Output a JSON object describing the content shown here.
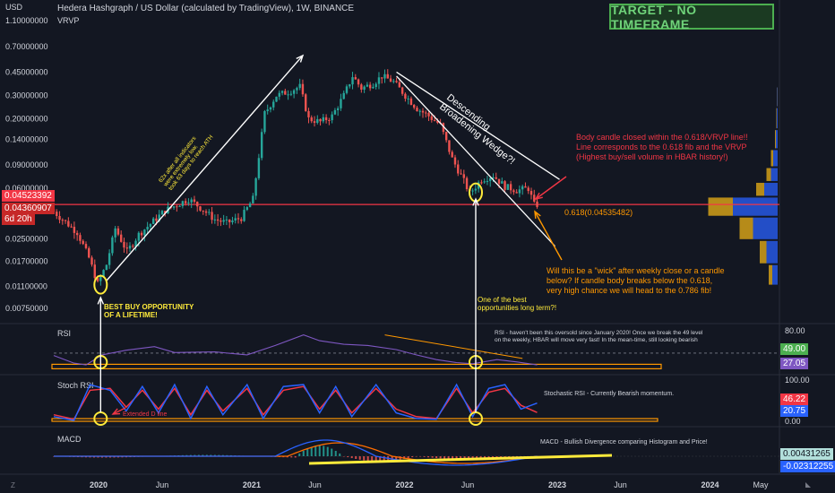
{
  "header": {
    "currency": "USD",
    "title": "Hedera Hashgraph / US Dollar (calculated by TradingView), 1W, BINANCE",
    "indicator": "VRVP",
    "target_label": "TARGET - NO TIMEFRAME"
  },
  "chart_data": {
    "type": "candlestick",
    "symbol": "HBAR/USD",
    "timeframe": "1W",
    "y_scale": "log",
    "price_axis_labels": [
      "1.10000000",
      "0.70000000",
      "0.45000000",
      "0.30000000",
      "0.20000000",
      "0.14000000",
      "0.09000000",
      "0.06000000",
      "0.02500000",
      "0.01700000",
      "0.01100000",
      "0.00750000"
    ],
    "price_axis_values": [
      1.1,
      0.7,
      0.45,
      0.3,
      0.2,
      0.14,
      0.09,
      0.06,
      0.025,
      0.017,
      0.011,
      0.0075
    ],
    "x_axis_labels": [
      "2020",
      "Jun",
      "2021",
      "Jun",
      "2022",
      "Jun",
      "2023",
      "Jun",
      "2024",
      "May"
    ],
    "x_axis_dates": [
      "2020-01-01",
      "2020-06-01",
      "2021-01-01",
      "2021-06-01",
      "2022-01-01",
      "2022-06-01",
      "2023-01-01",
      "2023-06-01",
      "2024-01-01",
      "2024-05-01"
    ],
    "price_path": [
      [
        "2019-09-16",
        0.042
      ],
      [
        "2019-10-14",
        0.035
      ],
      [
        "2019-11-18",
        0.028
      ],
      [
        "2019-12-16",
        0.018
      ],
      [
        "2020-01-06",
        0.0115
      ],
      [
        "2020-01-27",
        0.016
      ],
      [
        "2020-02-17",
        0.03
      ],
      [
        "2020-03-16",
        0.02
      ],
      [
        "2020-04-13",
        0.027
      ],
      [
        "2020-05-18",
        0.034
      ],
      [
        "2020-06-15",
        0.041
      ],
      [
        "2020-07-13",
        0.045
      ],
      [
        "2020-08-10",
        0.05
      ],
      [
        "2020-09-07",
        0.043
      ],
      [
        "2020-10-12",
        0.035
      ],
      [
        "2020-11-09",
        0.033
      ],
      [
        "2020-12-14",
        0.036
      ],
      [
        "2021-01-11",
        0.05
      ],
      [
        "2021-02-08",
        0.22
      ],
      [
        "2021-03-08",
        0.3
      ],
      [
        "2021-04-05",
        0.32
      ],
      [
        "2021-05-03",
        0.35
      ],
      [
        "2021-05-24",
        0.2
      ],
      [
        "2021-06-21",
        0.19
      ],
      [
        "2021-07-19",
        0.21
      ],
      [
        "2021-08-16",
        0.3
      ],
      [
        "2021-09-06",
        0.42
      ],
      [
        "2021-09-27",
        0.34
      ],
      [
        "2021-10-25",
        0.37
      ],
      [
        "2021-11-15",
        0.42
      ],
      [
        "2021-12-13",
        0.38
      ],
      [
        "2022-01-10",
        0.3
      ],
      [
        "2022-02-07",
        0.24
      ],
      [
        "2022-03-07",
        0.21
      ],
      [
        "2022-04-04",
        0.18
      ],
      [
        "2022-05-02",
        0.1
      ],
      [
        "2022-05-30",
        0.068
      ],
      [
        "2022-06-13",
        0.055
      ],
      [
        "2022-07-11",
        0.07
      ],
      [
        "2022-08-08",
        0.075
      ],
      [
        "2022-09-05",
        0.062
      ],
      [
        "2022-10-03",
        0.058
      ],
      [
        "2022-10-31",
        0.06
      ],
      [
        "2022-11-14",
        0.0452
      ]
    ],
    "last_price": "0.04523392",
    "prev_price": "0.04360907",
    "countdown": "6d 20h",
    "fib_label": "0.618(0.04535482)",
    "fib_value": 0.04535482,
    "volume_profile": {
      "name": "VRVP",
      "bins": [
        {
          "price": 0.3,
          "up": 0.01,
          "down": 0.005
        },
        {
          "price": 0.2,
          "up": 0.02,
          "down": 0.01
        },
        {
          "price": 0.14,
          "up": 0.04,
          "down": 0.02
        },
        {
          "price": 0.1,
          "up": 0.1,
          "down": 0.05
        },
        {
          "price": 0.075,
          "up": 0.15,
          "down": 0.1
        },
        {
          "price": 0.06,
          "up": 0.3,
          "down": 0.18
        },
        {
          "price": 0.045,
          "up": 1.0,
          "down": 0.55
        },
        {
          "price": 0.03,
          "up": 0.55,
          "down": 0.3
        },
        {
          "price": 0.02,
          "up": 0.25,
          "down": 0.15
        },
        {
          "price": 0.013,
          "up": 0.12,
          "down": 0.08
        }
      ]
    },
    "rsi": {
      "name": "RSI",
      "axis_labels": [
        "80.00"
      ],
      "current": "49.00",
      "current2": "27.05",
      "path": [
        [
          0,
          45
        ],
        [
          5,
          32
        ],
        [
          8,
          29
        ],
        [
          12,
          46
        ],
        [
          18,
          54
        ],
        [
          25,
          60
        ],
        [
          30,
          50
        ],
        [
          40,
          51
        ],
        [
          48,
          46
        ],
        [
          55,
          62
        ],
        [
          62,
          80
        ],
        [
          66,
          70
        ],
        [
          72,
          64
        ],
        [
          78,
          62
        ],
        [
          85,
          55
        ],
        [
          90,
          46
        ],
        [
          95,
          38
        ],
        [
          100,
          33
        ],
        [
          104,
          31
        ],
        [
          110,
          38
        ],
        [
          115,
          34
        ],
        [
          120,
          29
        ]
      ]
    },
    "stoch_rsi": {
      "name": "Stoch RSI",
      "axis_labels": [
        "100.00",
        "0.00"
      ],
      "k_value": "46.22",
      "d_value": "20.75",
      "k_path": [
        [
          0,
          10
        ],
        [
          5,
          0
        ],
        [
          9,
          95
        ],
        [
          14,
          80
        ],
        [
          18,
          25
        ],
        [
          22,
          90
        ],
        [
          26,
          20
        ],
        [
          30,
          95
        ],
        [
          34,
          5
        ],
        [
          38,
          90
        ],
        [
          42,
          15
        ],
        [
          48,
          95
        ],
        [
          52,
          5
        ],
        [
          57,
          90
        ],
        [
          62,
          95
        ],
        [
          66,
          20
        ],
        [
          70,
          90
        ],
        [
          74,
          10
        ],
        [
          80,
          95
        ],
        [
          85,
          20
        ],
        [
          90,
          5
        ],
        [
          95,
          3
        ],
        [
          100,
          95
        ],
        [
          104,
          10
        ],
        [
          108,
          85
        ],
        [
          112,
          95
        ],
        [
          116,
          30
        ],
        [
          120,
          46
        ]
      ],
      "d_path": [
        [
          0,
          15
        ],
        [
          5,
          3
        ],
        [
          9,
          80
        ],
        [
          14,
          85
        ],
        [
          18,
          35
        ],
        [
          22,
          80
        ],
        [
          26,
          30
        ],
        [
          30,
          85
        ],
        [
          34,
          15
        ],
        [
          38,
          80
        ],
        [
          42,
          25
        ],
        [
          48,
          85
        ],
        [
          52,
          15
        ],
        [
          57,
          80
        ],
        [
          62,
          90
        ],
        [
          66,
          30
        ],
        [
          70,
          80
        ],
        [
          74,
          20
        ],
        [
          80,
          85
        ],
        [
          85,
          30
        ],
        [
          90,
          10
        ],
        [
          95,
          5
        ],
        [
          100,
          85
        ],
        [
          104,
          20
        ],
        [
          108,
          75
        ],
        [
          112,
          85
        ],
        [
          116,
          40
        ],
        [
          120,
          21
        ]
      ]
    },
    "macd": {
      "name": "MACD",
      "value1": "0.00431265",
      "value2": "-0.02312255"
    },
    "annotations": {
      "best_buy": "BEST BUY OPPORTUNITY\nOF A LIFETIME!",
      "rally": "62x after all indicators\nwere extremely low,\ntook 63 days to reach ATH",
      "wedge": "Descending\nBroadening Wedge?!",
      "body_candle": "Body candle closed within the 0.618/VRVP line!!\nLine corresponds to the 0.618 fib and the VRVP\n(Highest buy/sell volume in HBAR history!)",
      "wick_question": "Will this be a \"wick\" after weekly close or a candle\nbelow? If candle body breaks below the 0.618,\nvery high chance we will head to the 0.786 fib!",
      "long_term": "One of the best\nopportunities long term?!",
      "rsi_note": "RSI - haven't been this oversold since January 2020! Once we break the 49 level\non the weekly, HBAR will move very fast! In the mean-time, still looking bearish",
      "extended_d": "Extended D line",
      "stoch_note": "Stochastic RSI - Currently Bearish momentum.",
      "macd_note": "MACD - Bullish Divergence comparing Histogram and Price!"
    },
    "colors": {
      "up": "#26a69a",
      "down": "#ef5350",
      "rsi_line": "#7e57c2",
      "stoch_k": "#2962ff",
      "stoch_d": "#f23645",
      "macd_line": "#2962ff",
      "signal_line": "#ff6d00",
      "fib": "#f23645",
      "highlight": "#ffeb3b",
      "orange": "#ff9800"
    }
  }
}
